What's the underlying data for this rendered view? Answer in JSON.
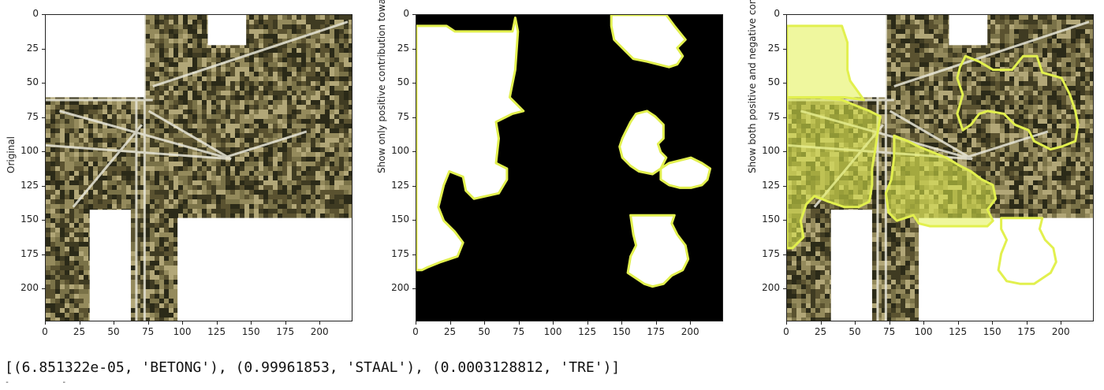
{
  "panels": [
    {
      "name": "original",
      "ylabel": "Original"
    },
    {
      "name": "positive",
      "ylabel": "Show only positive contribution towards prediction"
    },
    {
      "name": "both",
      "ylabel": "Show both positive and negative contribution"
    }
  ],
  "axes": {
    "xticks": [
      "0",
      "25",
      "50",
      "75",
      "100",
      "125",
      "150",
      "175",
      "200"
    ],
    "yticks": [
      "0",
      "25",
      "50",
      "75",
      "100",
      "125",
      "150",
      "175",
      "200"
    ]
  },
  "colors": {
    "highlight": "#e2f04e",
    "satellite_dark": "#3f3b22",
    "satellite_mid": "#7a7248",
    "satellite_light": "#b2a778",
    "mask_black": "#000000",
    "masked_white": "#ffffff"
  },
  "output": {
    "text": "[(6.851322e-05, 'BETONG'), (0.99961853, 'STAAL'), (0.0003128812, 'TRE')]",
    "trailing": "-           -"
  }
}
